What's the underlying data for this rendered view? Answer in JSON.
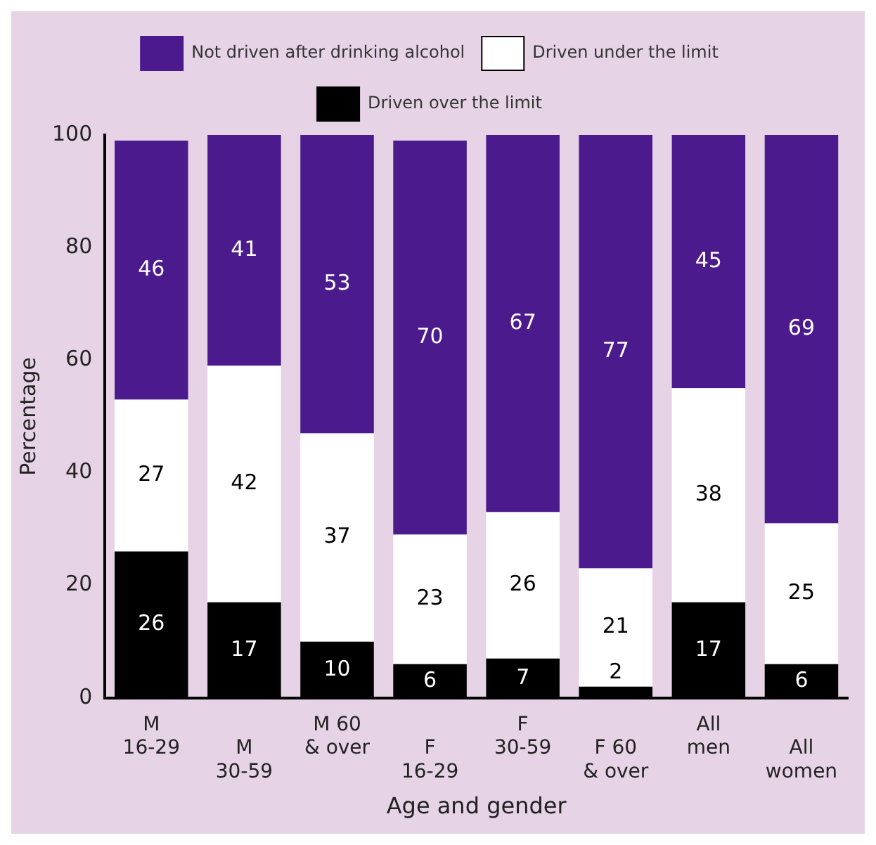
{
  "chart_data": {
    "type": "bar",
    "stacked": true,
    "xlabel": "Age and gender",
    "ylabel": "Percentage",
    "categories": [
      "M\n16-29",
      "M\n30-59",
      "M 60\n& over",
      "F\n16-29",
      "F\n30-59",
      "F 60\n& over",
      "All\nmen",
      "All\nwomen"
    ],
    "series": [
      {
        "name": "Driven over the limit",
        "color": "#000000",
        "values": [
          26,
          17,
          10,
          6,
          7,
          2,
          17,
          6
        ]
      },
      {
        "name": "Driven under the limit",
        "color": "#ffffff",
        "values": [
          27,
          42,
          37,
          23,
          26,
          21,
          38,
          25
        ]
      },
      {
        "name": "Not driven after drinking alcohol",
        "color": "#4b1a8c",
        "values": [
          46,
          41,
          53,
          70,
          67,
          77,
          45,
          69
        ]
      }
    ],
    "ylim": [
      0,
      100
    ],
    "yticks": [
      0,
      20,
      40,
      60,
      80,
      100
    ],
    "grid": false,
    "legend": "top",
    "data_labels": true
  }
}
